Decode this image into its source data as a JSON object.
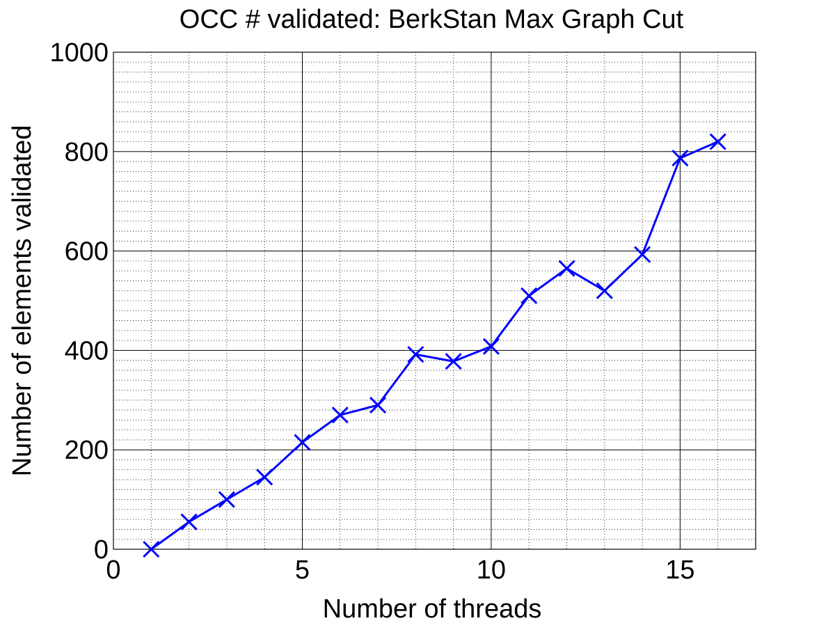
{
  "chart_data": {
    "type": "line",
    "title": "OCC # validated: BerkStan Max Graph Cut",
    "xlabel": "Number of threads",
    "ylabel": "Number of elements validated",
    "xlim": [
      0,
      17
    ],
    "ylim": [
      0,
      1000
    ],
    "x_ticks": [
      "0",
      "5",
      "10",
      "15"
    ],
    "y_ticks": [
      "0",
      "200",
      "400",
      "600",
      "800",
      "1000"
    ],
    "grid": {
      "major": true,
      "minor": true
    },
    "marker": "x",
    "color": "#0000ff",
    "series": [
      {
        "x": [
          1,
          2,
          3,
          4,
          5,
          6,
          7,
          8,
          9,
          10,
          11,
          12,
          13,
          14,
          15,
          16
        ],
        "values": [
          0,
          55,
          100,
          145,
          215,
          270,
          290,
          392,
          378,
          408,
          510,
          565,
          520,
          593,
          787,
          820
        ]
      }
    ]
  }
}
